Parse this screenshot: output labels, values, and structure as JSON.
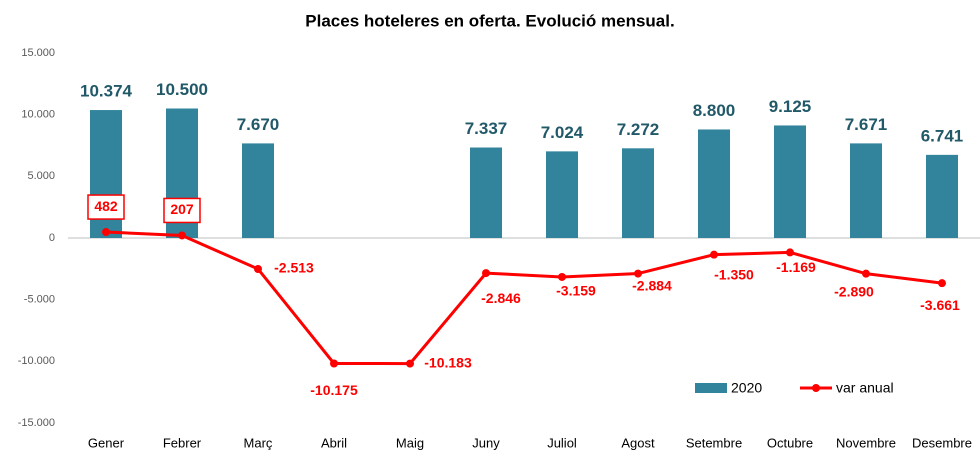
{
  "chart_data": {
    "type": "combo",
    "title": "Places hoteleres en oferta. Evolució mensual.",
    "categories": [
      "Gener",
      "Febrer",
      "Març",
      "Abril",
      "Maig",
      "Juny",
      "Juliol",
      "Agost",
      "Setembre",
      "Octubre",
      "Novembre",
      "Desembre"
    ],
    "series": [
      {
        "name": "2020",
        "type": "bar",
        "color": "#31849b",
        "values": [
          10374,
          10500,
          7670,
          null,
          null,
          7337,
          7024,
          7272,
          8800,
          9125,
          7671,
          6741
        ],
        "value_labels": [
          "10.374",
          "10.500",
          "7.670",
          null,
          null,
          "7.337",
          "7.024",
          "7.272",
          "8.800",
          "9.125",
          "7.671",
          "6.741"
        ]
      },
      {
        "name": "var anual",
        "type": "line",
        "color": "#ff0000",
        "values": [
          482,
          207,
          -2513,
          -10175,
          -10183,
          -2846,
          -3159,
          -2884,
          -1350,
          -1169,
          -2890,
          -3661
        ],
        "value_labels": [
          "482",
          "207",
          "-2.513",
          "-10.175",
          "-10.183",
          "-2.846",
          "-3.159",
          "-2.884",
          "-1.350",
          "-1.169",
          "-2.890",
          "-3.661"
        ]
      }
    ],
    "ylim": [
      -15000,
      15000
    ],
    "yticks": [
      {
        "value": -15000,
        "label": "-15.000"
      },
      {
        "value": -10000,
        "label": "-10.000"
      },
      {
        "value": -5000,
        "label": "-5.000"
      },
      0,
      {
        "value": 5000,
        "label": "5.000"
      },
      {
        "value": 10000,
        "label": "10.000"
      },
      {
        "value": 15000,
        "label": "15.000"
      }
    ],
    "grid": false,
    "legend": "lower right"
  }
}
